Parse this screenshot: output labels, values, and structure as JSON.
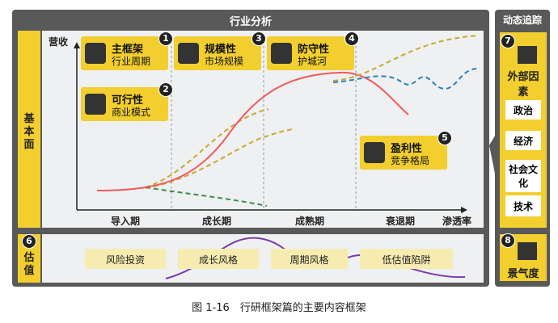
{
  "header": {
    "title": "行业分析",
    "side_title": "动态追踪"
  },
  "left_labels": [
    "基本面",
    "估值"
  ],
  "axis": {
    "y_label": "营收",
    "x_label": "渗透率",
    "stages": [
      "导入期",
      "成长期",
      "成熟期",
      "衰退期"
    ]
  },
  "cards": [
    {
      "number": "1",
      "title": "主框架",
      "subtitle": "行业周期"
    },
    {
      "number": "2",
      "title": "可行性",
      "subtitle": "商业模式"
    },
    {
      "number": "3",
      "title": "规模性",
      "subtitle": "市场规模"
    },
    {
      "number": "4",
      "title": "防守性",
      "subtitle": "护城河"
    },
    {
      "number": "5",
      "title": "盈利性",
      "subtitle": "竞争格局"
    }
  ],
  "valuation": {
    "number": "6",
    "items": [
      "风险投资",
      "成长风格",
      "周期风格",
      "低估值陷阱"
    ]
  },
  "tracking": {
    "number": "7",
    "title": "外部因素",
    "items": [
      "政治",
      "经济",
      "社会文化",
      "技术"
    ]
  },
  "sentiment": {
    "number": "8",
    "title": "景气度"
  },
  "caption": "图 1-16　行研框架篇的主要内容框架"
}
